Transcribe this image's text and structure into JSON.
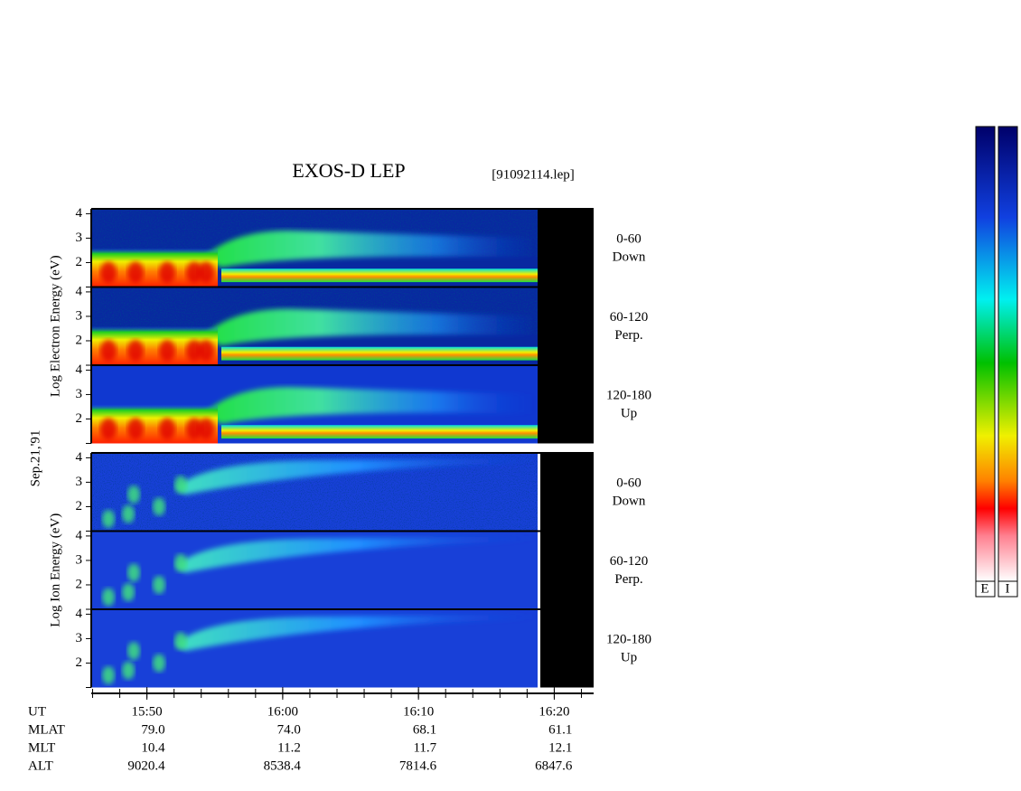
{
  "chart_data": {
    "type": "spectrogram",
    "title": "EXOS-D LEP",
    "file": "[91092114.lep]",
    "date": "Sep.21,'91",
    "groups": [
      {
        "ylabel": "Log Electron Energy (eV)",
        "panels": [
          [
            "0-60",
            "Down"
          ],
          [
            "60-120",
            "Perp."
          ],
          [
            "120-180",
            "Up"
          ]
        ]
      },
      {
        "ylabel": "Log Ion Energy (eV)",
        "panels": [
          [
            "0-60",
            "Down"
          ],
          [
            "60-120",
            "Perp."
          ],
          [
            "120-180",
            "Up"
          ]
        ]
      }
    ],
    "ylim": [
      1,
      4.2
    ],
    "yticks": [
      2,
      3,
      4
    ],
    "xlim": [
      945.9,
      982.9
    ],
    "xticks": [
      {
        "value": 950,
        "label": "15:50"
      },
      {
        "value": 960,
        "label": "16:00"
      },
      {
        "value": 970,
        "label": "16:10"
      },
      {
        "value": 980,
        "label": "16:20"
      }
    ],
    "ephemeris": [
      {
        "name": "UT"
      },
      {
        "name": "MLAT",
        "values": [
          "79.0",
          "74.0",
          "68.1",
          "61.1"
        ]
      },
      {
        "name": "MLT",
        "values": [
          "10.4",
          "11.2",
          "11.7",
          "12.1"
        ]
      },
      {
        "name": "ALT",
        "values": [
          "9020.4",
          "8538.4",
          "7814.6",
          "6847.6"
        ]
      }
    ],
    "colorbar_labels": [
      "E",
      "I"
    ]
  }
}
